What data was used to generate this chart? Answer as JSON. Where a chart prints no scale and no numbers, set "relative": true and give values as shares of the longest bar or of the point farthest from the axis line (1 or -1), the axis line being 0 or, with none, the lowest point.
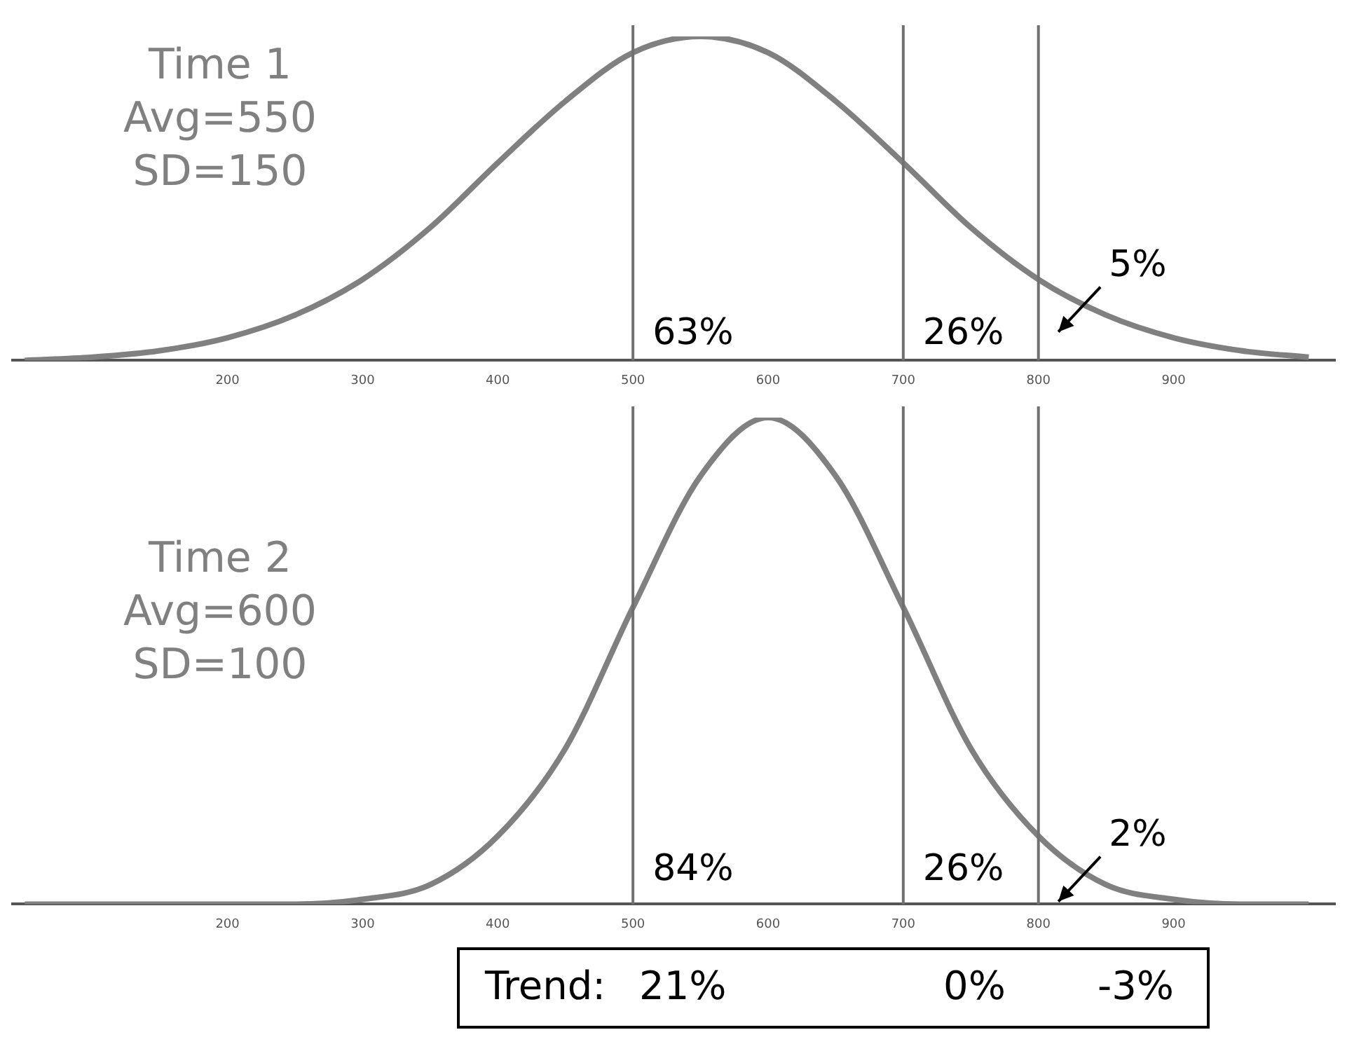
{
  "chart_data": [
    {
      "type": "line",
      "title": "Time 1",
      "relative": true,
      "color": "#808080",
      "xlim": [
        40,
        1020
      ],
      "xticks": [
        200,
        300,
        400,
        500,
        600,
        700,
        800,
        900
      ],
      "x": [
        50,
        100,
        150,
        200,
        250,
        300,
        350,
        400,
        450,
        500,
        550,
        600,
        650,
        700,
        750,
        800,
        850,
        900,
        950,
        1000
      ],
      "values": [
        0,
        0.01,
        0.03,
        0.07,
        0.14,
        0.25,
        0.41,
        0.61,
        0.8,
        0.95,
        1,
        0.95,
        0.8,
        0.61,
        0.41,
        0.25,
        0.14,
        0.07,
        0.03,
        0.01
      ],
      "ref_lines": [
        {
          "axis": "x",
          "value": 500,
          "color": "#707070"
        },
        {
          "axis": "x",
          "value": 700,
          "color": "#707070"
        },
        {
          "axis": "x",
          "value": 800,
          "color": "#707070"
        }
      ],
      "annotations": [
        "Avg=550",
        "SD=150",
        {
          "text": "63%",
          "x": 500,
          "y": 0.05
        },
        {
          "text": "26%",
          "x": 700,
          "y": 0.05
        },
        {
          "text": "5%",
          "x": 850,
          "y": 0.14
        }
      ],
      "grid": false,
      "legend": false,
      "marker": "none"
    },
    {
      "type": "line",
      "title": "Time 2",
      "relative": true,
      "color": "#808080",
      "xlim": [
        40,
        1020
      ],
      "xticks": [
        200,
        300,
        400,
        500,
        600,
        700,
        800,
        900
      ],
      "x": [
        50,
        100,
        150,
        200,
        250,
        300,
        350,
        400,
        450,
        500,
        550,
        600,
        650,
        700,
        750,
        800,
        850,
        900,
        950,
        1000
      ],
      "values": [
        0,
        0,
        0,
        0,
        0,
        0.01,
        0.04,
        0.14,
        0.32,
        0.61,
        0.88,
        1,
        0.88,
        0.61,
        0.32,
        0.14,
        0.04,
        0.01,
        0,
        0
      ],
      "ref_lines": [
        {
          "axis": "x",
          "value": 500,
          "color": "#707070"
        },
        {
          "axis": "x",
          "value": 700,
          "color": "#707070"
        },
        {
          "axis": "x",
          "value": 800,
          "color": "#707070"
        }
      ],
      "annotations": [
        "Avg=600",
        "SD=100",
        {
          "text": "84%",
          "x": 500,
          "y": 0.05
        },
        {
          "text": "26%",
          "x": 700,
          "y": 0.05
        },
        {
          "text": "2%",
          "x": 850,
          "y": 0.04
        },
        "Trend:",
        "21%",
        "0%",
        "-3%"
      ],
      "grid": false,
      "legend": false,
      "marker": "none"
    }
  ]
}
